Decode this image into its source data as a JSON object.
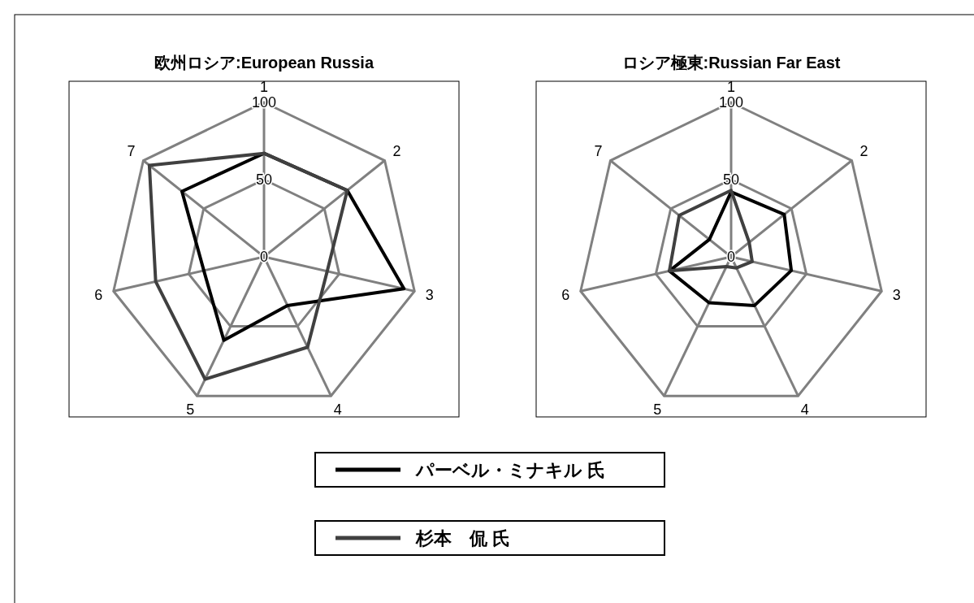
{
  "chart_data": [
    {
      "type": "radar",
      "title": "欧州ロシア:European Russia",
      "categories": [
        "1",
        "2",
        "3",
        "4",
        "5",
        "6",
        "7"
      ],
      "ylim": [
        0,
        100
      ],
      "yticks": [
        0,
        50,
        100
      ],
      "grid": true,
      "legend": "bottom",
      "line_style": "solid",
      "marker": "none",
      "series": [
        {
          "name": "パーベル・ミナキル 氏",
          "color": "#000000",
          "values": [
            67,
            69,
            93,
            35,
            60,
            40,
            68
          ]
        },
        {
          "name": "杉本　侃 氏",
          "color": "#404040",
          "values": [
            67,
            69,
            42,
            65,
            88,
            72,
            95
          ]
        }
      ]
    },
    {
      "type": "radar",
      "title": "ロシア極東:Russian Far East",
      "categories": [
        "1",
        "2",
        "3",
        "4",
        "5",
        "6",
        "7"
      ],
      "ylim": [
        0,
        100
      ],
      "yticks": [
        0,
        50,
        100
      ],
      "grid": true,
      "line_style": "solid",
      "marker": "none",
      "series": [
        {
          "color": "#000000",
          "values": [
            42,
            44,
            40,
            35,
            33,
            41,
            18
          ]
        },
        {
          "color": "#404040",
          "values": [
            43,
            15,
            14,
            8,
            7,
            41,
            43
          ]
        }
      ]
    }
  ]
}
